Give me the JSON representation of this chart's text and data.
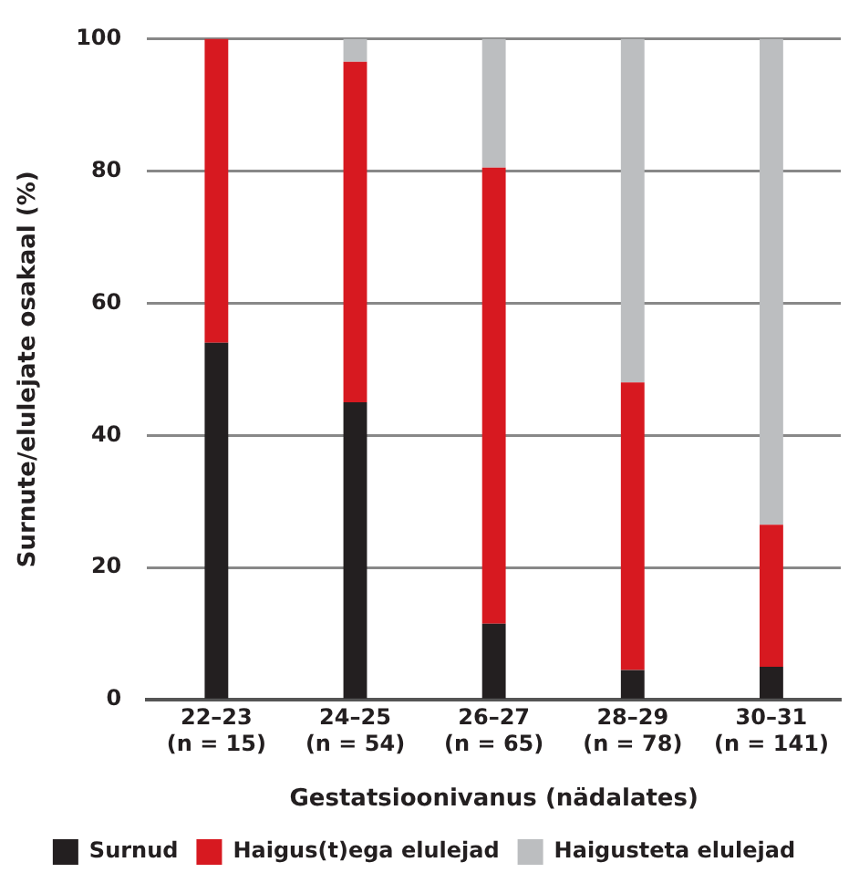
{
  "chart_data": {
    "type": "bar",
    "stacked": true,
    "xlabel": "Gestatsioonivanus (nädalates)",
    "ylabel": "Surnute/elulejate osakaal (%)",
    "categories": [
      "22–23\n(n = 15)",
      "24–25\n(n = 54)",
      "26–27\n(n = 65)",
      "28–29\n(n = 78)",
      "30–31\n(n = 141)"
    ],
    "series": [
      {
        "name": "Surnud",
        "color": "#231f20",
        "values": [
          54,
          45,
          11.5,
          4.5,
          5
        ]
      },
      {
        "name": "Haigus(t)ega elulejad",
        "color": "#d71920",
        "values": [
          46,
          51.5,
          69,
          43.5,
          21.5
        ]
      },
      {
        "name": "Haigusteta elulejad",
        "color": "#bcbec0",
        "values": [
          0,
          3.5,
          19.5,
          52,
          73.5
        ]
      }
    ],
    "ylim": [
      0,
      100
    ],
    "yticks": [
      0,
      20,
      40,
      60,
      80,
      100
    ],
    "grid": "y",
    "legend": "bottom"
  }
}
